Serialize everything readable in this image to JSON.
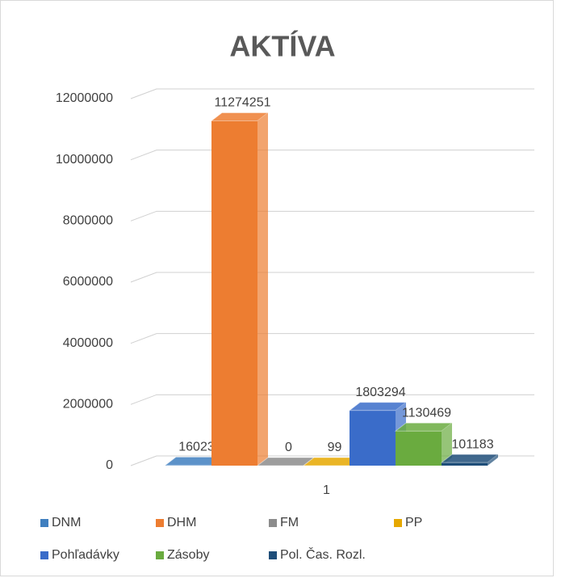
{
  "chart_data": {
    "type": "bar3d",
    "title": "AKTÍVA",
    "categories": [
      "1"
    ],
    "series": [
      {
        "name": "DNM",
        "color": "#3f7fbf",
        "values": [
          16023
        ]
      },
      {
        "name": "DHM",
        "color": "#ed7d31",
        "values": [
          11274251
        ]
      },
      {
        "name": "FM",
        "color": "#8c8c8c",
        "values": [
          0
        ]
      },
      {
        "name": "PP",
        "color": "#e6a800",
        "values": [
          99
        ]
      },
      {
        "name": "Pohľadávky",
        "color": "#3a6cc9",
        "values": [
          1803294
        ]
      },
      {
        "name": "Zásoby",
        "color": "#6aab3f",
        "values": [
          1130469
        ]
      },
      {
        "name": "Pol. Čas. Rozl.",
        "color": "#1f4e79",
        "values": [
          101183
        ]
      }
    ],
    "ylim": [
      0,
      12000000
    ],
    "yticks": [
      0,
      2000000,
      4000000,
      6000000,
      8000000,
      10000000,
      12000000
    ],
    "grid": true,
    "legend": "bottom"
  }
}
